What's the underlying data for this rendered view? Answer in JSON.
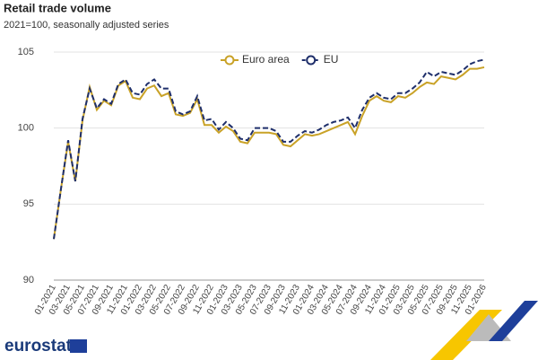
{
  "chart_data": {
    "type": "line",
    "title": "Retail trade volume",
    "subtitle": "2021=100, seasonally adjusted series",
    "logo": "eurostat",
    "categories": [
      "01-2021",
      null,
      "03-2021",
      null,
      "05-2021",
      null,
      "07-2021",
      null,
      "09-2021",
      null,
      "11-2021",
      null,
      "01-2022",
      null,
      "03-2022",
      null,
      "05-2022",
      null,
      "07-2022",
      null,
      "09-2022",
      null,
      "11-2022",
      null,
      "01-2023",
      null,
      "03-2023",
      null,
      "05-2023",
      null,
      "07-2023",
      null,
      "09-2023",
      null,
      "11-2023",
      null,
      "01-2024",
      null,
      "03-2024",
      null,
      "05-2024",
      null,
      "07-2024",
      null,
      "09-2024",
      null,
      "11-2024",
      null,
      "01-2025",
      null,
      "03-2025",
      null,
      "05-2025",
      null,
      "07-2025",
      null,
      "09-2025",
      null,
      "11-2025",
      null,
      "01-2026"
    ],
    "series": [
      {
        "name": "Euro area",
        "color": "#c9a227",
        "dashed": false,
        "values": [
          92.7,
          96.0,
          99.1,
          96.5,
          100.5,
          102.7,
          101.2,
          101.8,
          101.5,
          102.8,
          103.1,
          102.0,
          101.9,
          102.6,
          102.8,
          102.1,
          102.3,
          100.9,
          100.8,
          101.0,
          101.9,
          100.2,
          100.2,
          99.7,
          100.1,
          99.8,
          99.1,
          99.0,
          99.7,
          99.7,
          99.7,
          99.6,
          98.9,
          98.8,
          99.2,
          99.6,
          99.5,
          99.6,
          99.8,
          100.0,
          100.2,
          100.4,
          99.6,
          100.8,
          101.8,
          102.1,
          101.8,
          101.7,
          102.1,
          102.0,
          102.3,
          102.7,
          103.0,
          102.9,
          103.4,
          103.3,
          103.2,
          103.5,
          103.9,
          103.9,
          104.0
        ]
      },
      {
        "name": "EU",
        "color": "#1f2f6b",
        "dashed": true,
        "values": [
          92.7,
          96.0,
          99.2,
          96.5,
          100.6,
          102.6,
          101.3,
          101.9,
          101.6,
          102.9,
          103.2,
          102.3,
          102.2,
          102.9,
          103.2,
          102.6,
          102.6,
          101.1,
          100.9,
          101.1,
          102.1,
          100.5,
          100.6,
          99.9,
          100.4,
          100.0,
          99.3,
          99.2,
          100.0,
          100.0,
          100.0,
          99.8,
          99.1,
          99.1,
          99.5,
          99.8,
          99.7,
          99.9,
          100.2,
          100.4,
          100.5,
          100.7,
          100.0,
          101.2,
          102.0,
          102.3,
          102.0,
          101.9,
          102.3,
          102.3,
          102.6,
          103.0,
          103.7,
          103.4,
          103.7,
          103.6,
          103.5,
          103.8,
          104.2,
          104.4,
          104.5
        ]
      }
    ],
    "ylim": [
      90,
      105
    ],
    "yticks": [
      90,
      95,
      100,
      105
    ],
    "grid": true,
    "legend": "top"
  }
}
